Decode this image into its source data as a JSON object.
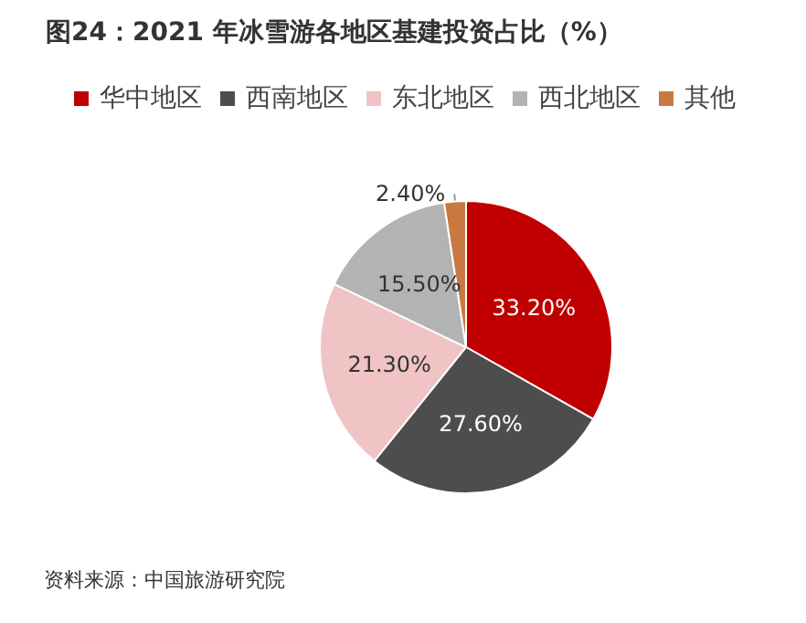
{
  "chart_data": {
    "type": "pie",
    "title": "图24：2021 年冰雪游各地区基建投资占比（%）",
    "categories": [
      "华中地区",
      "西南地区",
      "东北地区",
      "西北地区",
      "其他"
    ],
    "values": [
      33.2,
      27.6,
      21.3,
      15.5,
      2.4
    ],
    "value_labels": [
      "33.20%",
      "27.60%",
      "21.30%",
      "15.50%",
      "2.40%"
    ],
    "colors": [
      "#c00000",
      "#4d4d4d",
      "#f0c4c4",
      "#b3b3b3",
      "#c87941"
    ],
    "legend": "top",
    "annotations": [
      "资料来源：中国旅游研究院"
    ]
  }
}
